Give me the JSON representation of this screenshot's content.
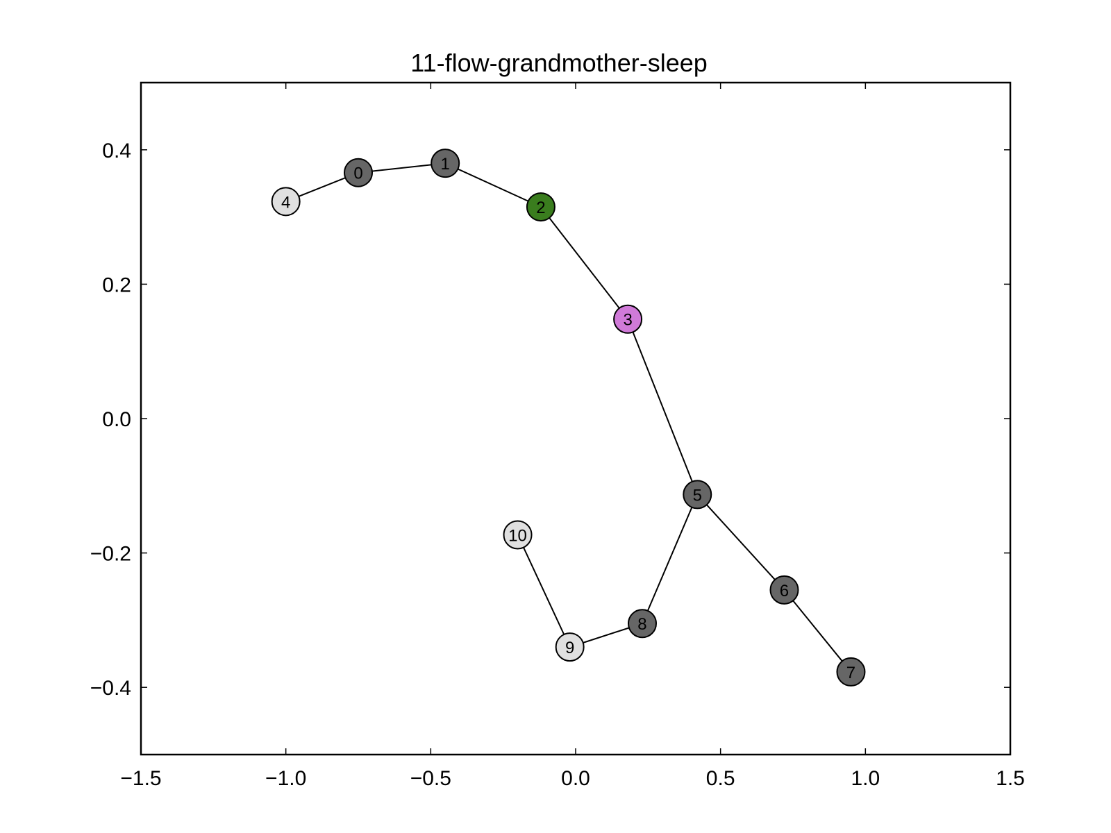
{
  "chart_data": {
    "type": "scatter",
    "subtype": "network-graph",
    "title": "11-flow-grandmother-sleep",
    "xlabel": "",
    "ylabel": "",
    "xlim": [
      -1.5,
      1.5
    ],
    "ylim": [
      -0.5,
      0.5
    ],
    "xticks": [
      -1.5,
      -1.0,
      -0.5,
      0.0,
      0.5,
      1.0,
      1.5
    ],
    "xtick_labels": [
      "−1.5",
      "−1.0",
      "−0.5",
      "0.0",
      "0.5",
      "1.0",
      "1.5"
    ],
    "yticks": [
      -0.4,
      -0.2,
      0.0,
      0.2,
      0.4
    ],
    "ytick_labels": [
      "−0.4",
      "−0.2",
      "0.0",
      "0.2",
      "0.4"
    ],
    "grid": false,
    "nodes": [
      {
        "id": "0",
        "x": -0.75,
        "y": 0.366,
        "color": "#666666"
      },
      {
        "id": "1",
        "x": -0.45,
        "y": 0.38,
        "color": "#666666"
      },
      {
        "id": "2",
        "x": -0.12,
        "y": 0.315,
        "color": "#3a7d1e"
      },
      {
        "id": "3",
        "x": 0.18,
        "y": 0.148,
        "color": "#d07ad8"
      },
      {
        "id": "4",
        "x": -1.0,
        "y": 0.323,
        "color": "#e0e0e0"
      },
      {
        "id": "5",
        "x": 0.42,
        "y": -0.113,
        "color": "#666666"
      },
      {
        "id": "6",
        "x": 0.72,
        "y": -0.255,
        "color": "#666666"
      },
      {
        "id": "7",
        "x": 0.95,
        "y": -0.377,
        "color": "#666666"
      },
      {
        "id": "8",
        "x": 0.23,
        "y": -0.305,
        "color": "#666666"
      },
      {
        "id": "9",
        "x": -0.02,
        "y": -0.34,
        "color": "#e0e0e0"
      },
      {
        "id": "10",
        "x": -0.2,
        "y": -0.173,
        "color": "#e0e0e0"
      }
    ],
    "edges": [
      [
        "4",
        "0"
      ],
      [
        "0",
        "1"
      ],
      [
        "1",
        "2"
      ],
      [
        "2",
        "3"
      ],
      [
        "3",
        "5"
      ],
      [
        "5",
        "6"
      ],
      [
        "6",
        "7"
      ],
      [
        "5",
        "8"
      ],
      [
        "8",
        "9"
      ],
      [
        "9",
        "10"
      ]
    ]
  }
}
